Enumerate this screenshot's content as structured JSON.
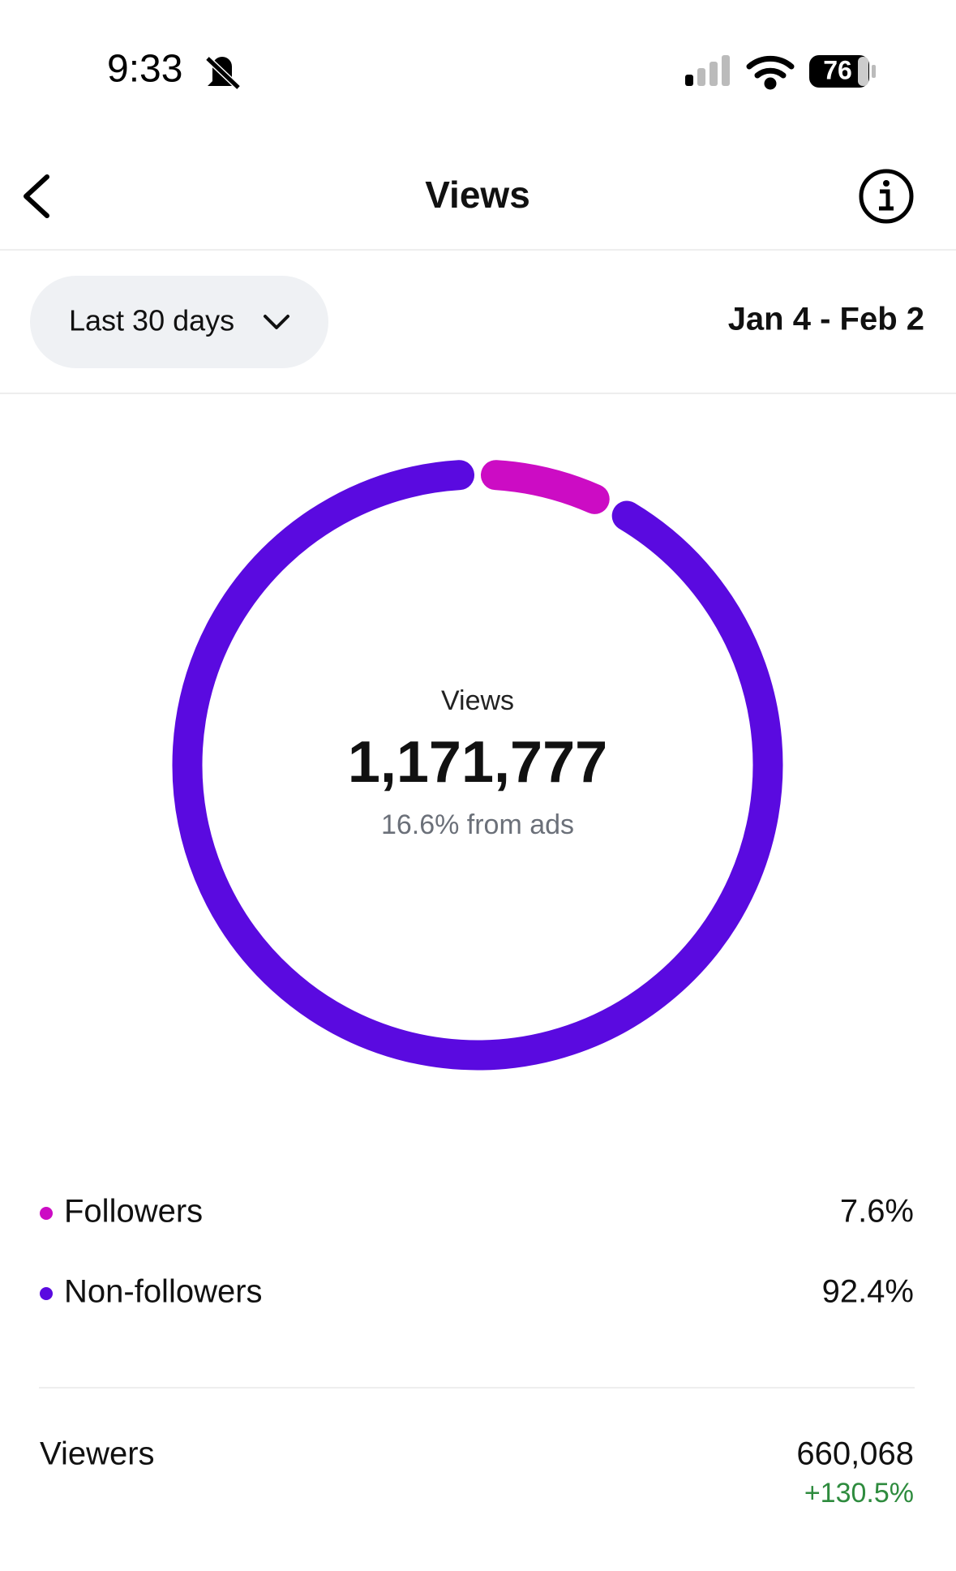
{
  "status_bar": {
    "time": "9:33",
    "battery": "76"
  },
  "header": {
    "title": "Views"
  },
  "filter": {
    "period": "Last 30 days",
    "date_range": "Jan 4 - Feb 2"
  },
  "chart_data": {
    "type": "donut",
    "center_label": "Views",
    "center_value": "1,171,777",
    "center_subtext": "16.6% from ads",
    "categories": [
      "Followers",
      "Non-followers"
    ],
    "values": [
      7.6,
      92.4
    ],
    "value_labels": [
      "7.6%",
      "92.4%"
    ],
    "colors": [
      "#cc0cc4",
      "#5a0ae0"
    ]
  },
  "summary": {
    "label": "Viewers",
    "value": "660,068",
    "change": "+130.5%"
  }
}
